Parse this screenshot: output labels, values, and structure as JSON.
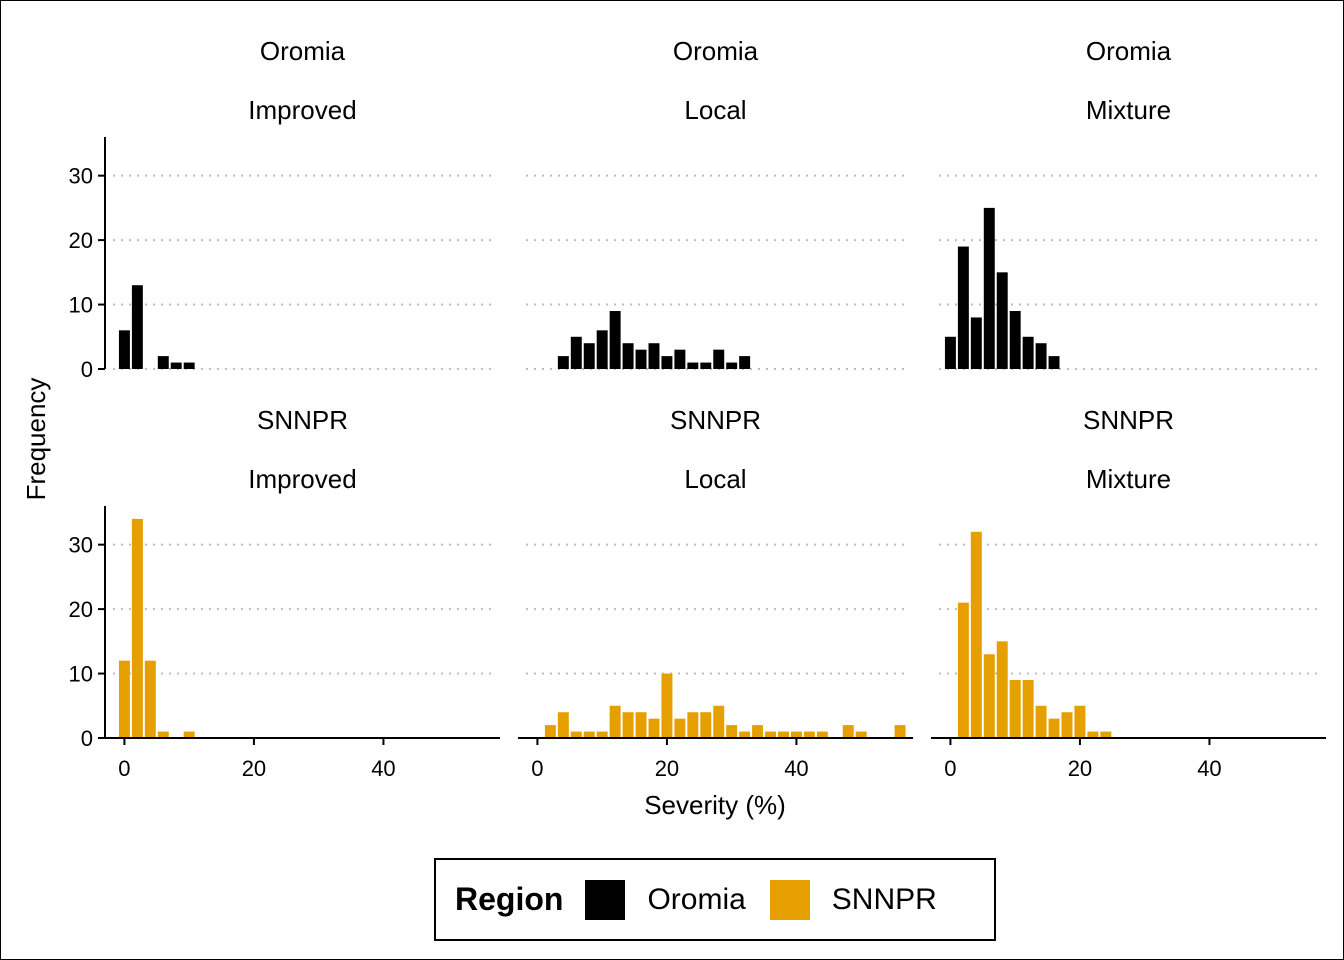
{
  "chart_data": {
    "type": "bar",
    "xlabel": "Severity (%)",
    "ylabel": "Frequency",
    "xlim": [
      -3,
      58
    ],
    "ylim": [
      0,
      36
    ],
    "xticks": [
      0,
      20,
      40
    ],
    "yticks": [
      0,
      10,
      20,
      30
    ],
    "grid": "horizontal dotted",
    "legend": {
      "title": "Region",
      "placement": "bottom",
      "entries": [
        {
          "name": "Oromia",
          "color": "#000000"
        },
        {
          "name": "SNNPR",
          "color": "#E69F00"
        }
      ]
    },
    "bin_width": 2,
    "panels": [
      {
        "region": "Oromia",
        "variety": "Improved",
        "color": "#000000",
        "x": [
          0,
          2,
          4,
          6,
          8,
          10
        ],
        "values": [
          6,
          13,
          0,
          2,
          1,
          1
        ]
      },
      {
        "region": "Oromia",
        "variety": "Local",
        "color": "#000000",
        "x": [
          4,
          6,
          8,
          10,
          12,
          14,
          16,
          18,
          20,
          22,
          24,
          26,
          28,
          30,
          32
        ],
        "values": [
          2,
          5,
          4,
          6,
          9,
          4,
          3,
          4,
          2,
          3,
          1,
          1,
          3,
          1,
          2
        ]
      },
      {
        "region": "Oromia",
        "variety": "Mixture",
        "color": "#000000",
        "x": [
          0,
          2,
          4,
          6,
          8,
          10,
          12,
          14,
          16
        ],
        "values": [
          5,
          19,
          8,
          25,
          15,
          9,
          5,
          4,
          2
        ]
      },
      {
        "region": "SNNPR",
        "variety": "Improved",
        "color": "#E69F00",
        "x": [
          0,
          2,
          4,
          6,
          8,
          10
        ],
        "values": [
          12,
          34,
          12,
          1,
          0,
          1
        ]
      },
      {
        "region": "SNNPR",
        "variety": "Local",
        "color": "#E69F00",
        "x": [
          2,
          4,
          6,
          8,
          10,
          12,
          14,
          16,
          18,
          20,
          22,
          24,
          26,
          28,
          30,
          32,
          34,
          36,
          38,
          40,
          42,
          44,
          46,
          48,
          50,
          52,
          54,
          56
        ],
        "values": [
          2,
          4,
          1,
          1,
          1,
          5,
          4,
          4,
          3,
          10,
          3,
          4,
          4,
          5,
          2,
          1,
          2,
          1,
          1,
          1,
          1,
          1,
          0,
          2,
          1,
          0,
          0,
          2
        ]
      },
      {
        "region": "SNNPR",
        "variety": "Mixture",
        "color": "#E69F00",
        "x": [
          2,
          4,
          6,
          8,
          10,
          12,
          14,
          16,
          18,
          20,
          22,
          24
        ],
        "values": [
          21,
          32,
          13,
          15,
          9,
          9,
          5,
          3,
          4,
          5,
          1,
          1
        ]
      }
    ]
  }
}
